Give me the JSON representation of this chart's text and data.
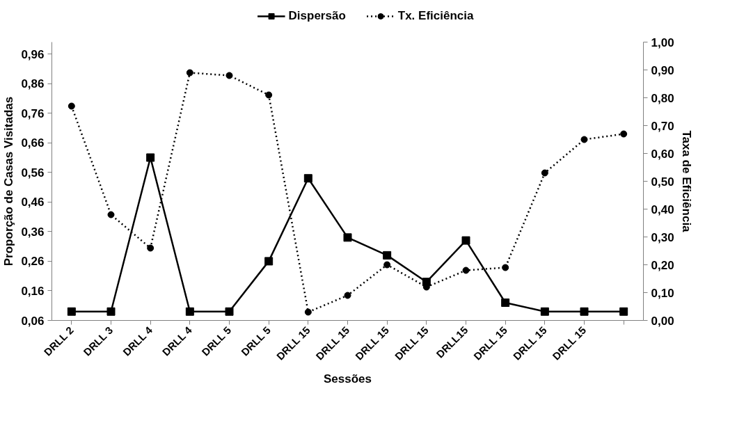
{
  "chart_data": {
    "type": "line",
    "xlabel": "Sessões",
    "ylabel": "Proporção de Casas Visitadas",
    "y2label": "Taxa de Eficiência",
    "categories": [
      "DRLL 2",
      "DRLL 3",
      "DRLL 4",
      "DRLL 4",
      "DRLL 5",
      "DRLL 5",
      "DRLL 15",
      "DRLL 15",
      "DRLL 15",
      "DRLL 15",
      "DRLL15",
      "DRLL 15",
      "DRLL 15",
      "DRLL 15",
      null
    ],
    "series": [
      {
        "name": "Dispersão",
        "color": "#000000",
        "marker": "square",
        "line_style": "solid",
        "values": [
          0.09,
          0.09,
          0.61,
          0.09,
          0.09,
          0.26,
          0.54,
          0.34,
          0.28,
          0.19,
          0.33,
          0.12,
          0.09,
          0.09,
          0.09
        ]
      },
      {
        "name": "Tx. Eficiência",
        "color": "#000000",
        "marker": "circle",
        "line_style": "dotted",
        "axis": "y2",
        "values": [
          0.77,
          0.38,
          0.26,
          0.89,
          0.88,
          0.81,
          0.03,
          0.09,
          0.2,
          0.12,
          0.18,
          0.19,
          0.53,
          0.65,
          0.67
        ]
      }
    ],
    "ylim": [
      0.06,
      1.0
    ],
    "yticks": [
      {
        "value": 0.06,
        "label": "0,06"
      },
      {
        "value": 0.16,
        "label": "0,16"
      },
      {
        "value": 0.26,
        "label": "0,26"
      },
      {
        "value": 0.36,
        "label": "0,36"
      },
      {
        "value": 0.46,
        "label": "0,46"
      },
      {
        "value": 0.56,
        "label": "0,56"
      },
      {
        "value": 0.66,
        "label": "0,66"
      },
      {
        "value": 0.76,
        "label": "0,76"
      },
      {
        "value": 0.86,
        "label": "0,86"
      },
      {
        "value": 0.96,
        "label": "0,96"
      }
    ],
    "y2lim": [
      0.0,
      1.0
    ],
    "y2ticks": [
      {
        "value": 0.0,
        "label": "0,00"
      },
      {
        "value": 0.1,
        "label": "0,10"
      },
      {
        "value": 0.2,
        "label": "0,20"
      },
      {
        "value": 0.3,
        "label": "0,30"
      },
      {
        "value": 0.4,
        "label": "0,40"
      },
      {
        "value": 0.5,
        "label": "0,50"
      },
      {
        "value": 0.6,
        "label": "0,60"
      },
      {
        "value": 0.7,
        "label": "0,70"
      },
      {
        "value": 0.8,
        "label": "0,80"
      },
      {
        "value": 0.9,
        "label": "0,90"
      },
      {
        "value": 1.0,
        "label": "1,00"
      }
    ],
    "grid": false,
    "legend": "top"
  }
}
